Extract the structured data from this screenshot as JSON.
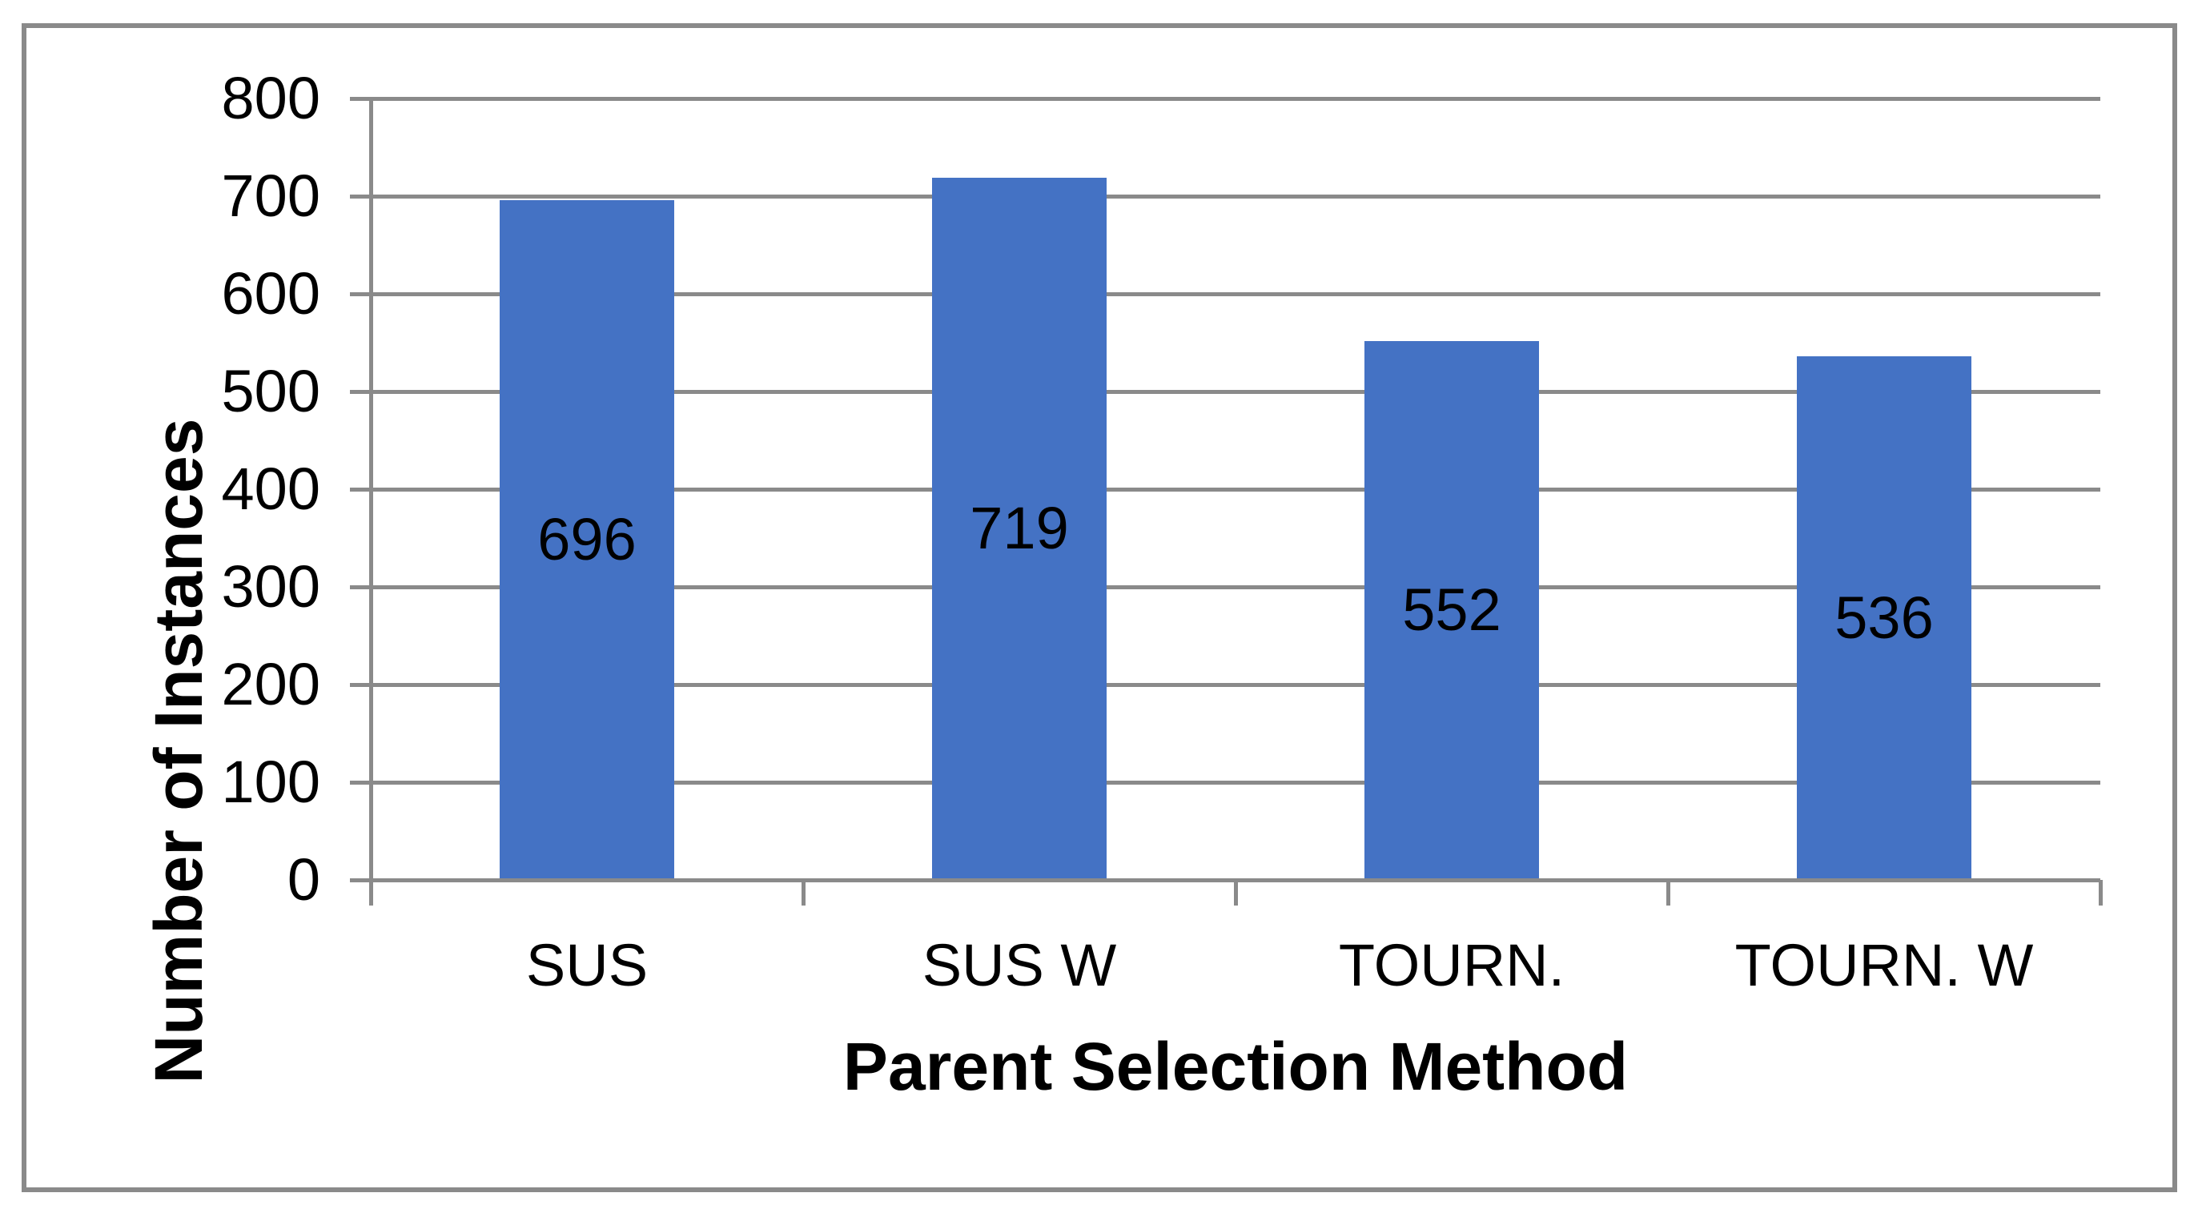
{
  "chart_data": {
    "type": "bar",
    "title": "",
    "categories": [
      "SUS",
      "SUS W",
      "TOURN.",
      "TOURN. W"
    ],
    "values": [
      696,
      719,
      552,
      536
    ],
    "data_labels": [
      "696",
      "719",
      "552",
      "536"
    ],
    "xlabel": "Parent Selection Method",
    "ylabel": "Number of Instances",
    "ylim": [
      0,
      800
    ],
    "yticks": [
      0,
      100,
      200,
      300,
      400,
      500,
      600,
      700,
      800
    ],
    "grid": "horizontal",
    "legend": "none",
    "data_label_position": "center",
    "colors": {
      "bar": "#4472C4",
      "gridline": "#8A8A8A",
      "axis": "#8A8A8A",
      "frame_border": "#8A8A8A",
      "text": "#000000",
      "background": "#FFFFFF"
    }
  }
}
